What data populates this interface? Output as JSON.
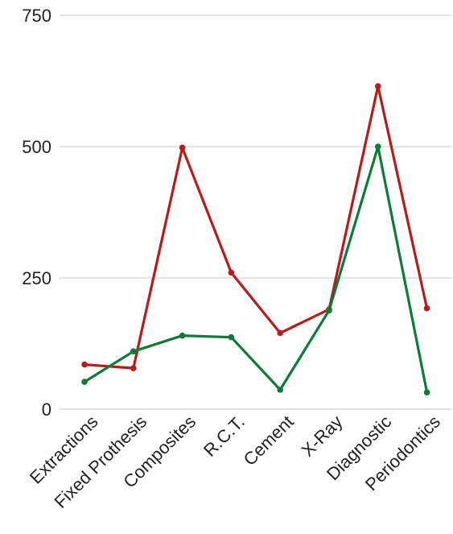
{
  "chart_data": {
    "type": "line",
    "title": "",
    "xlabel": "",
    "ylabel": "",
    "categories": [
      "Extractions",
      "Fixed Prothesis",
      "Composites",
      "R.C.T.",
      "Cement",
      "X-Ray",
      "Diagnostic",
      "Periodontics"
    ],
    "ylim": [
      0,
      750
    ],
    "yticks": [
      0,
      250,
      500,
      750
    ],
    "grid": true,
    "legend": "none",
    "series": [
      {
        "color": "#b71c1c",
        "values": [
          85,
          78,
          498,
          260,
          145,
          190,
          615,
          192
        ]
      },
      {
        "color": "#0d7a3a",
        "values": [
          52,
          110,
          140,
          137,
          37,
          188,
          500,
          32
        ]
      }
    ]
  }
}
